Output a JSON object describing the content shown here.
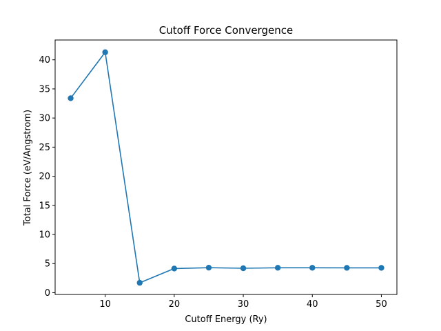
{
  "chart_data": {
    "type": "line",
    "title": "Cutoff Force Convergence",
    "xlabel": "Cutoff Energy (Ry)",
    "ylabel": "Total Force (eV/Angstrom)",
    "x": [
      5,
      10,
      15,
      20,
      25,
      30,
      35,
      40,
      45,
      50
    ],
    "series": [
      {
        "values": [
          33.4,
          41.3,
          1.7,
          4.15,
          4.3,
          4.2,
          4.28,
          4.28,
          4.27,
          4.27
        ],
        "color": "#1f77b4"
      }
    ],
    "xlim": [
      2.75,
      52.25
    ],
    "ylim": [
      -0.3,
      43.4
    ],
    "xticks": [
      10,
      20,
      30,
      40,
      50
    ],
    "yticks": [
      0,
      5,
      10,
      15,
      20,
      25,
      30,
      35,
      40
    ],
    "marker": "circle",
    "grid": false,
    "legend": "none"
  }
}
